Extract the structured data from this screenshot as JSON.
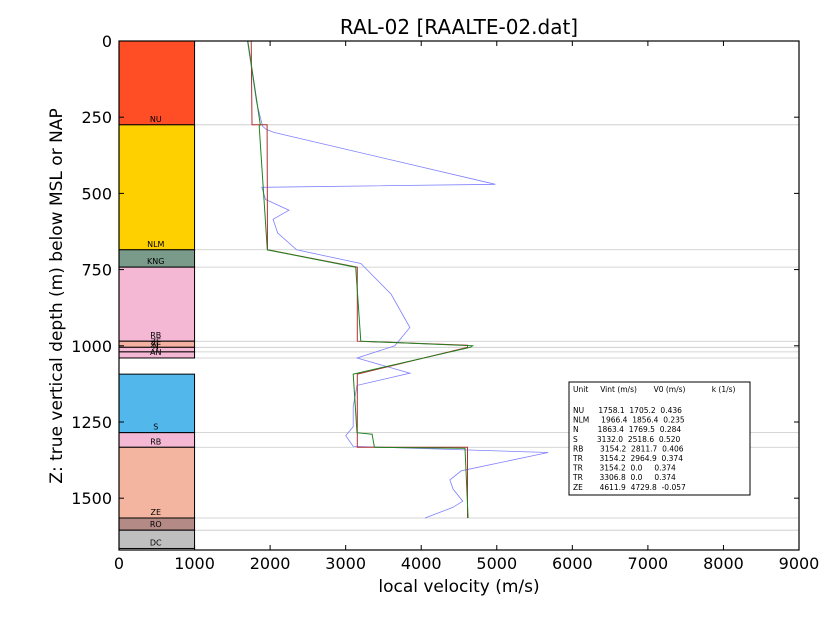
{
  "chart_data": {
    "type": "line",
    "title": "RAL-02 [RAALTE-02.dat]",
    "xlabel": "local velocity (m/s)",
    "ylabel": "Z: true vertical depth (m) below MSL or NAP",
    "xlim": [
      0,
      9000
    ],
    "ylim": [
      1670,
      0
    ],
    "y_inverted": true,
    "xticks": [
      "0",
      "1000",
      "2000",
      "3000",
      "4000",
      "5000",
      "6000",
      "7000",
      "8000",
      "9000"
    ],
    "yticks": [
      "0",
      "250",
      "500",
      "750",
      "1000",
      "1250",
      "1500"
    ],
    "ytick_values": [
      0,
      250,
      500,
      750,
      1000,
      1250,
      1500
    ],
    "xtick_values": [
      0,
      1000,
      2000,
      3000,
      4000,
      5000,
      6000,
      7000,
      8000,
      9000
    ],
    "grid": false,
    "layer_boundaries": [
      275,
      685,
      742,
      985,
      1005,
      1020,
      1040,
      1285,
      1333,
      1565,
      1605,
      1670
    ],
    "units": [
      {
        "label": "NU",
        "top": 0,
        "bottom": 275,
        "color": "#ff4d26"
      },
      {
        "label": "NLM",
        "top": 275,
        "bottom": 685,
        "color": "#ffd000"
      },
      {
        "label": "KNG",
        "top": 685,
        "bottom": 742,
        "color": "#7a9a8a"
      },
      {
        "label": "RB",
        "top": 742,
        "bottom": 985,
        "color": "#f4b8d4"
      },
      {
        "label": "ZE",
        "top": 985,
        "bottom": 1005,
        "color": "#f4b0a0"
      },
      {
        "label": "N",
        "top": 1005,
        "bottom": 1020,
        "color": "#f4b8d4"
      },
      {
        "label": "AN",
        "top": 1020,
        "bottom": 1040,
        "color": "#f4b8d4"
      },
      {
        "label": "S",
        "top": 1093,
        "bottom": 1285,
        "color": "#52b8ec"
      },
      {
        "label": "RB",
        "top": 1285,
        "bottom": 1333,
        "color": "#f4b8d4"
      },
      {
        "label": "ZE",
        "top": 1333,
        "bottom": 1565,
        "color": "#f4b5a0"
      },
      {
        "label": "RO",
        "top": 1565,
        "bottom": 1605,
        "color": "#b38a85"
      },
      {
        "label": "DC",
        "top": 1605,
        "bottom": 1665,
        "color": "#bfbfbf"
      }
    ],
    "unit_labels_extra": [
      {
        "label": "ZE",
        "depth": 995
      }
    ],
    "series": [
      {
        "color": "#8080ff",
        "points": [
          [
            1700,
            0
          ],
          [
            1760,
            100
          ],
          [
            1820,
            200
          ],
          [
            1900,
            280
          ],
          [
            1950,
            290
          ],
          [
            2050,
            300
          ],
          [
            4980,
            470
          ],
          [
            1890,
            480
          ],
          [
            1940,
            520
          ],
          [
            2250,
            555
          ],
          [
            2040,
            585
          ],
          [
            2100,
            630
          ],
          [
            2350,
            685
          ],
          [
            3200,
            730
          ],
          [
            3600,
            830
          ],
          [
            3850,
            940
          ],
          [
            3650,
            1000
          ],
          [
            3150,
            1040
          ],
          [
            3850,
            1090
          ],
          [
            3150,
            1130
          ],
          [
            3100,
            1200
          ],
          [
            3100,
            1265
          ],
          [
            3000,
            1295
          ],
          [
            3100,
            1330
          ],
          [
            5680,
            1350
          ],
          [
            4530,
            1410
          ],
          [
            4380,
            1440
          ],
          [
            4420,
            1470
          ],
          [
            4550,
            1510
          ],
          [
            4420,
            1530
          ],
          [
            4050,
            1565
          ]
        ]
      },
      {
        "color": "#b03030",
        "points": [
          [
            1750,
            0
          ],
          [
            1760,
            275
          ],
          [
            1960,
            275
          ],
          [
            1966,
            685
          ],
          [
            3154,
            742
          ],
          [
            3154,
            985
          ],
          [
            4612,
            998
          ],
          [
            4612,
            1005
          ],
          [
            3154,
            1093
          ],
          [
            3154,
            1333
          ],
          [
            4612,
            1333
          ],
          [
            4612,
            1565
          ]
        ]
      },
      {
        "color": "#208020",
        "points": [
          [
            1705,
            0
          ],
          [
            1870,
            275
          ],
          [
            1856,
            280
          ],
          [
            1963,
            685
          ],
          [
            3133,
            742
          ],
          [
            3200,
            985
          ],
          [
            4680,
            1000
          ],
          [
            4650,
            1005
          ],
          [
            3100,
            1093
          ],
          [
            3150,
            1285
          ],
          [
            3350,
            1290
          ],
          [
            3380,
            1333
          ],
          [
            4580,
            1336
          ],
          [
            4620,
            1565
          ]
        ]
      }
    ],
    "legend_table": {
      "header": "Unit     Vint (m/s)       V0 (m/s)           k (1/s)",
      "rows": [
        "NU      1758.1  1705.2  0.436",
        "NLM     1966.4  1856.4  0.235",
        "N        1863.4  1769.5  0.284",
        "S        3132.0  2518.6  0.520",
        "RB       3154.2  2811.7  0.406",
        "TR       3154.2  2964.9  0.374",
        "TR       3154.2  0.0     0.374",
        "TR       3306.8  0.0     0.374",
        "ZE       4611.9  4729.8  -0.057"
      ]
    }
  }
}
